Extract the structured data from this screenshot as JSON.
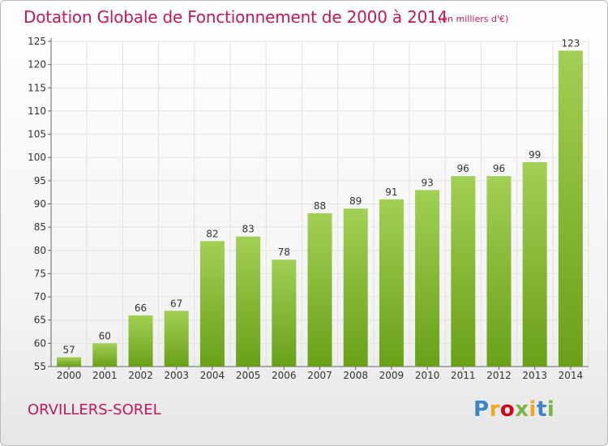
{
  "header": {
    "title": "Dotation Globale de Fonctionnement de 2000 à 2014",
    "subtitle": "(en milliers d'€)"
  },
  "footer": {
    "city": "ORVILLERS-SOREL",
    "brand": "Proxiti",
    "brand_colors": [
      "#3d86c6",
      "#f5a623",
      "#d0021b",
      "#7cb342",
      "#f5a623",
      "#3d86c6",
      "#7cb342"
    ]
  },
  "colors": {
    "accent": "#c2185b",
    "bar_top": "#a2cf55",
    "bar_bottom": "#6aa018",
    "grid": "#e2e2e2"
  },
  "chart_data": {
    "type": "bar",
    "title": "Dotation Globale de Fonctionnement de 2000 à 2014",
    "subtitle": "(en milliers d'€)",
    "categories": [
      "2000",
      "2001",
      "2002",
      "2003",
      "2004",
      "2005",
      "2006",
      "2007",
      "2008",
      "2009",
      "2010",
      "2011",
      "2012",
      "2013",
      "2014"
    ],
    "values": [
      57,
      60,
      66,
      67,
      82,
      83,
      78,
      88,
      89,
      91,
      93,
      96,
      96,
      99,
      123
    ],
    "yticks": [
      55,
      60,
      65,
      70,
      75,
      80,
      85,
      90,
      95,
      100,
      105,
      110,
      115,
      120,
      125
    ],
    "ylim": [
      55,
      125
    ],
    "xlabel": "",
    "ylabel": "",
    "grid": true,
    "data_labels": true
  }
}
